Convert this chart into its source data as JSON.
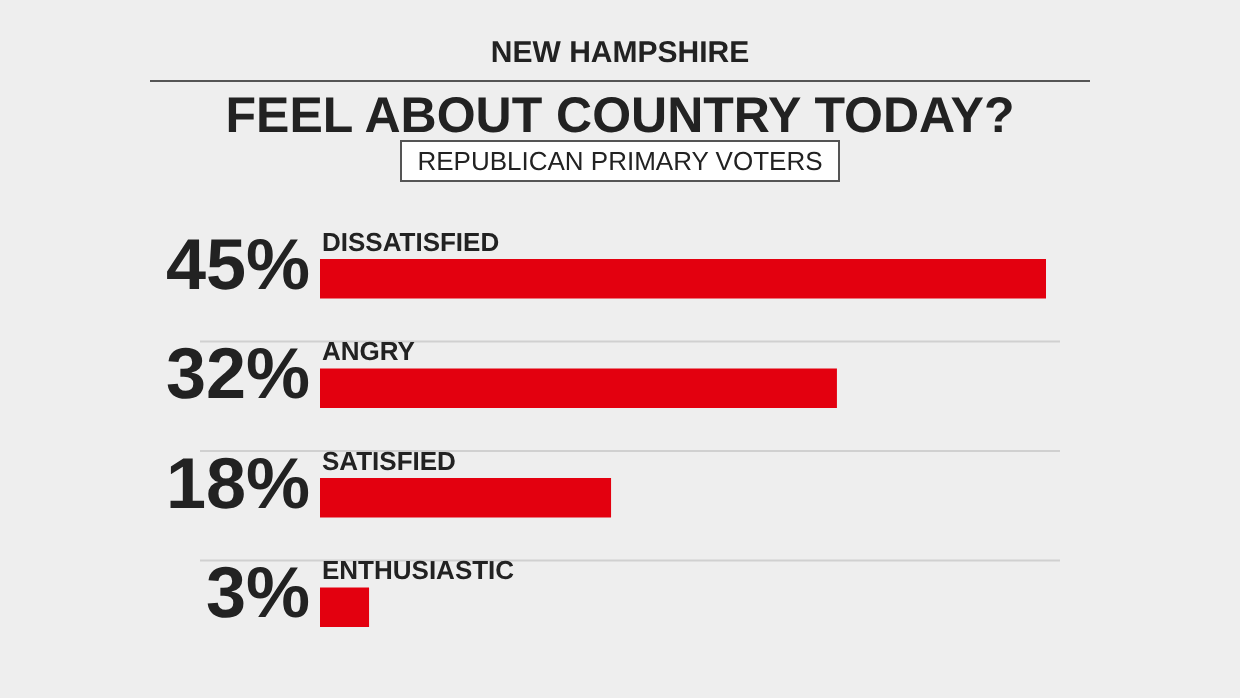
{
  "chart_data": {
    "type": "bar",
    "orientation": "horizontal",
    "title": "FEEL ABOUT COUNTRY TODAY?",
    "subtitle": "REPUBLICAN PRIMARY VOTERS",
    "annotations": [
      "NEW HAMPSHIRE"
    ],
    "categories": [
      "DISSATISFIED",
      "ANGRY",
      "SATISFIED",
      "ENTHUSIASTIC"
    ],
    "values": [
      45,
      32,
      18,
      3
    ],
    "color": "#e3000f",
    "value_labels": [
      "45%",
      "32%",
      "18%",
      "3%"
    ],
    "grid": "y",
    "legend": false,
    "tick_labels": false
  }
}
